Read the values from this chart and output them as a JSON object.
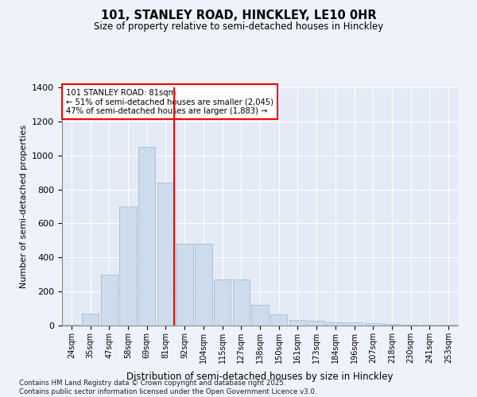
{
  "title1": "101, STANLEY ROAD, HINCKLEY, LE10 0HR",
  "title2": "Size of property relative to semi-detached houses in Hinckley",
  "xlabel": "Distribution of semi-detached houses by size in Hinckley",
  "ylabel": "Number of semi-detached properties",
  "categories": [
    "24sqm",
    "35sqm",
    "47sqm",
    "58sqm",
    "69sqm",
    "81sqm",
    "92sqm",
    "104sqm",
    "115sqm",
    "127sqm",
    "138sqm",
    "150sqm",
    "161sqm",
    "173sqm",
    "184sqm",
    "196sqm",
    "207sqm",
    "218sqm",
    "230sqm",
    "241sqm",
    "253sqm"
  ],
  "values": [
    5,
    70,
    300,
    700,
    1050,
    840,
    480,
    480,
    270,
    270,
    120,
    65,
    35,
    30,
    20,
    20,
    15,
    10,
    6,
    5,
    3
  ],
  "bar_color": "#ccdcec",
  "bar_edge_color": "#aabccc",
  "vline_x_index": 5,
  "vline_color": "red",
  "annotation_title": "101 STANLEY ROAD: 81sqm",
  "annotation_line1": "← 51% of semi-detached houses are smaller (2,045)",
  "annotation_line2": "47% of semi-detached houses are larger (1,883) →",
  "annotation_box_color": "white",
  "annotation_box_edge_color": "red",
  "ylim": [
    0,
    1400
  ],
  "yticks": [
    0,
    200,
    400,
    600,
    800,
    1000,
    1200,
    1400
  ],
  "footer1": "Contains HM Land Registry data © Crown copyright and database right 2025.",
  "footer2": "Contains public sector information licensed under the Open Government Licence v3.0.",
  "bg_color": "#eef2fb",
  "plot_bg_color": "#e4eaf6"
}
